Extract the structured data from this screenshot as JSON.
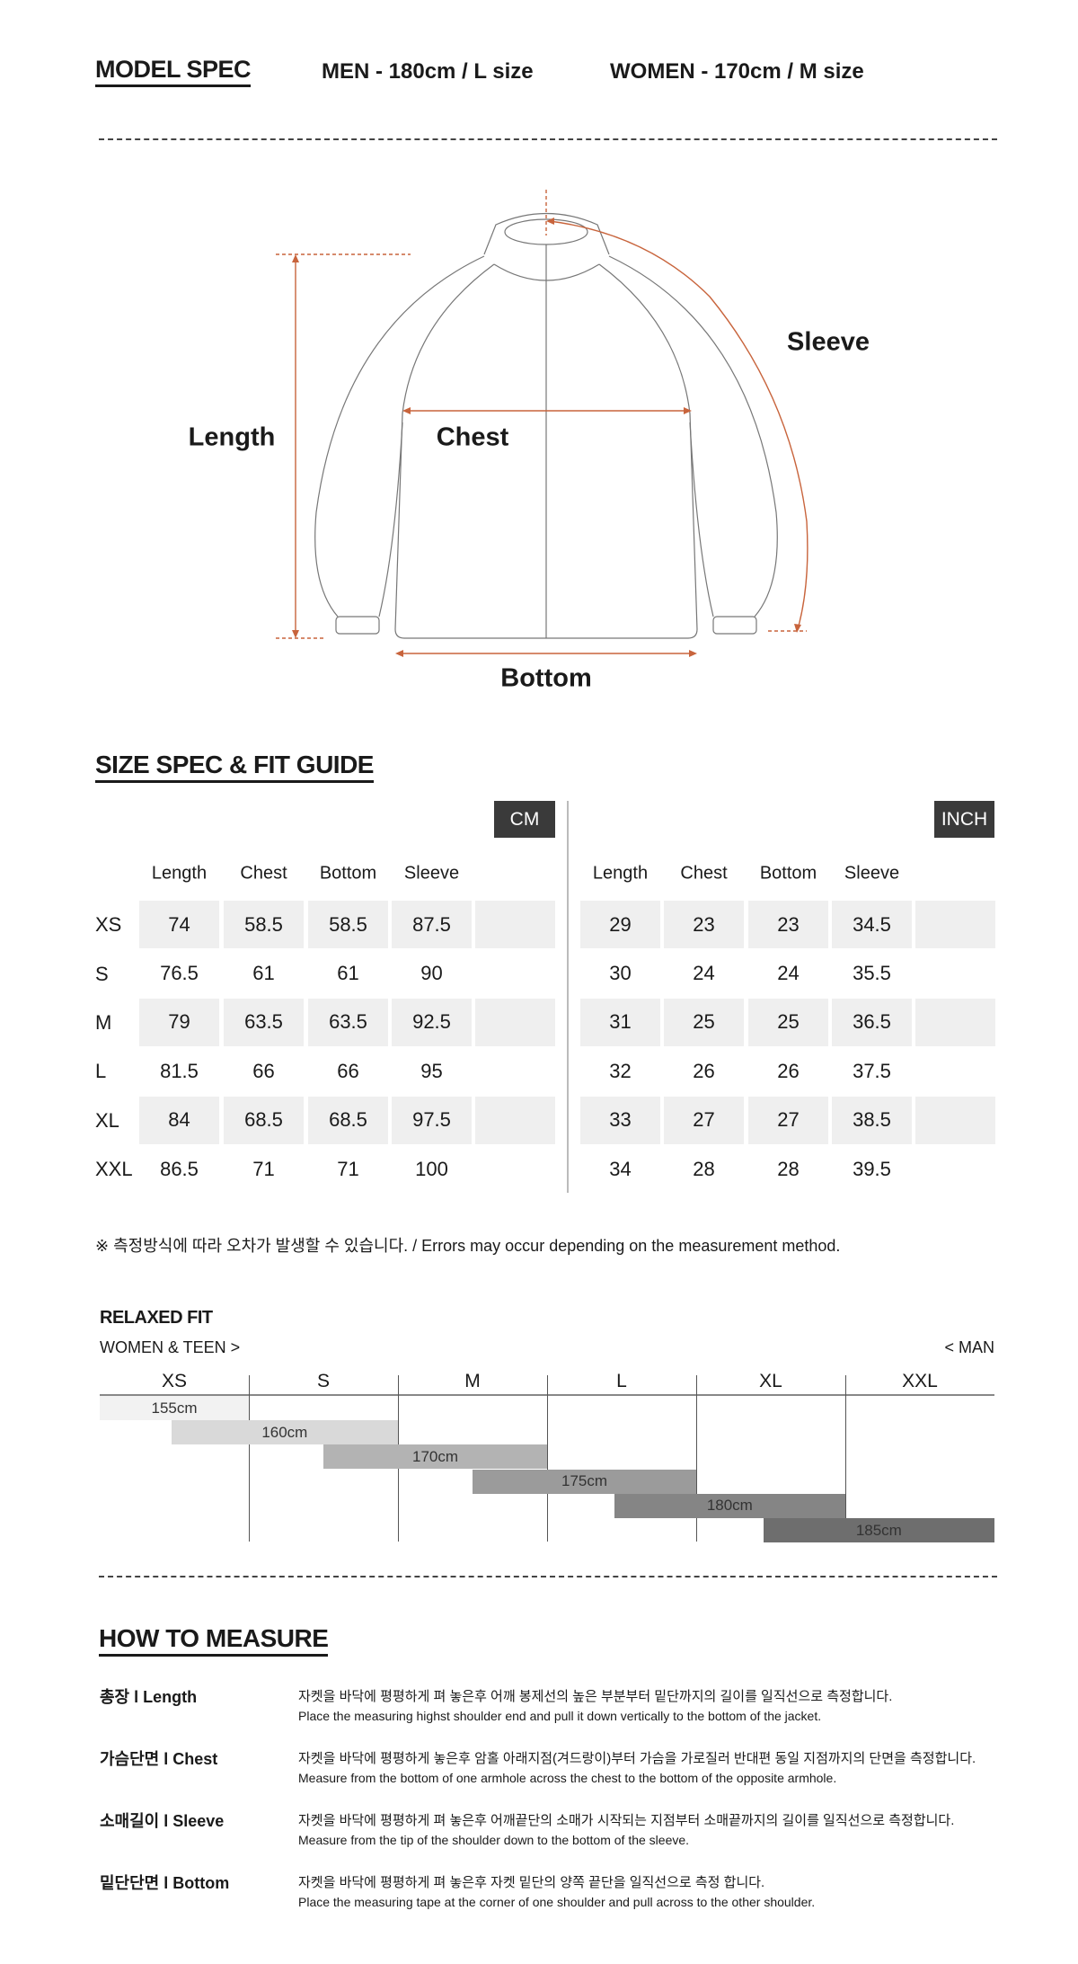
{
  "model_spec": {
    "title": "MODEL SPEC",
    "men": "MEN - 180cm / L size",
    "women": "WOMEN - 170cm / M size"
  },
  "diagram": {
    "labels": {
      "length": "Length",
      "chest": "Chest",
      "sleeve": "Sleeve",
      "bottom": "Bottom"
    },
    "accent_color": "#c8643c"
  },
  "size_spec": {
    "title": "SIZE SPEC  &  FIT GUIDE",
    "columns": [
      "Length",
      "Chest",
      "Bottom",
      "Sleeve"
    ],
    "sizes": [
      "XS",
      "S",
      "M",
      "L",
      "XL",
      "XXL"
    ],
    "cm": {
      "unit_label": "CM",
      "rows": [
        [
          "74",
          "58.5",
          "58.5",
          "87.5"
        ],
        [
          "76.5",
          "61",
          "61",
          "90"
        ],
        [
          "79",
          "63.5",
          "63.5",
          "92.5"
        ],
        [
          "81.5",
          "66",
          "66",
          "95"
        ],
        [
          "84",
          "68.5",
          "68.5",
          "97.5"
        ],
        [
          "86.5",
          "71",
          "71",
          "100"
        ]
      ]
    },
    "inch": {
      "unit_label": "INCH",
      "rows": [
        [
          "29",
          "23",
          "23",
          "34.5"
        ],
        [
          "30",
          "24",
          "24",
          "35.5"
        ],
        [
          "31",
          "25",
          "25",
          "36.5"
        ],
        [
          "32",
          "26",
          "26",
          "37.5"
        ],
        [
          "33",
          "27",
          "27",
          "38.5"
        ],
        [
          "34",
          "28",
          "28",
          "39.5"
        ]
      ]
    },
    "note": "※ 측정방식에 따라 오차가 발생할 수 있습니다. / Errors may occur depending on the measurement method."
  },
  "fit_guide": {
    "title": "RELAXED FIT",
    "left_label": "WOMEN & TEEN >",
    "right_label": "< MAN",
    "sizes": [
      "XS",
      "S",
      "M",
      "L",
      "XL",
      "XXL"
    ],
    "heights": [
      {
        "label": "155cm",
        "color": "#f2f2f2"
      },
      {
        "label": "160cm",
        "color": "#d9d9d9"
      },
      {
        "label": "170cm",
        "color": "#b3b3b3"
      },
      {
        "label": "175cm",
        "color": "#9b9b9b"
      },
      {
        "label": "180cm",
        "color": "#858585"
      },
      {
        "label": "185cm",
        "color": "#6e6e6e"
      }
    ]
  },
  "how_to_measure": {
    "title": "HOW TO MEASURE",
    "items": [
      {
        "label": "총장 l Length",
        "ko": "자켓을 바닥에 평평하게 펴 놓은후 어깨 봉제선의 높은 부분부터 밑단까지의 길이를 일직선으로 측정합니다.",
        "en": "Place the measuring highst shoulder end and pull it down vertically to the bottom of the jacket."
      },
      {
        "label": "가슴단면 l Chest",
        "ko": "자켓을 바닥에 평평하게 놓은후 암홀 아래지점(겨드랑이)부터 가슴을 가로질러 반대편 동일 지점까지의 단면을 측정합니다.",
        "en": "Measure from the bottom of one armhole across the chest to the bottom of the opposite armhole."
      },
      {
        "label": "소매길이 l Sleeve",
        "ko": "자켓을 바닥에 평평하게 펴 놓은후 어깨끝단의 소매가 시작되는 지점부터 소매끝까지의 길이를 일직선으로 측정합니다.",
        "en": "Measure from the tip of the shoulder down to the bottom of the sleeve."
      },
      {
        "label": "밑단단면 l Bottom",
        "ko": "자켓을 바닥에 평평하게 펴 놓은후 자켓 밑단의 양쪽 끝단을 일직선으로 측정 합니다.",
        "en": "Place the measuring tape at the corner of one shoulder and pull across to the other shoulder."
      }
    ]
  }
}
